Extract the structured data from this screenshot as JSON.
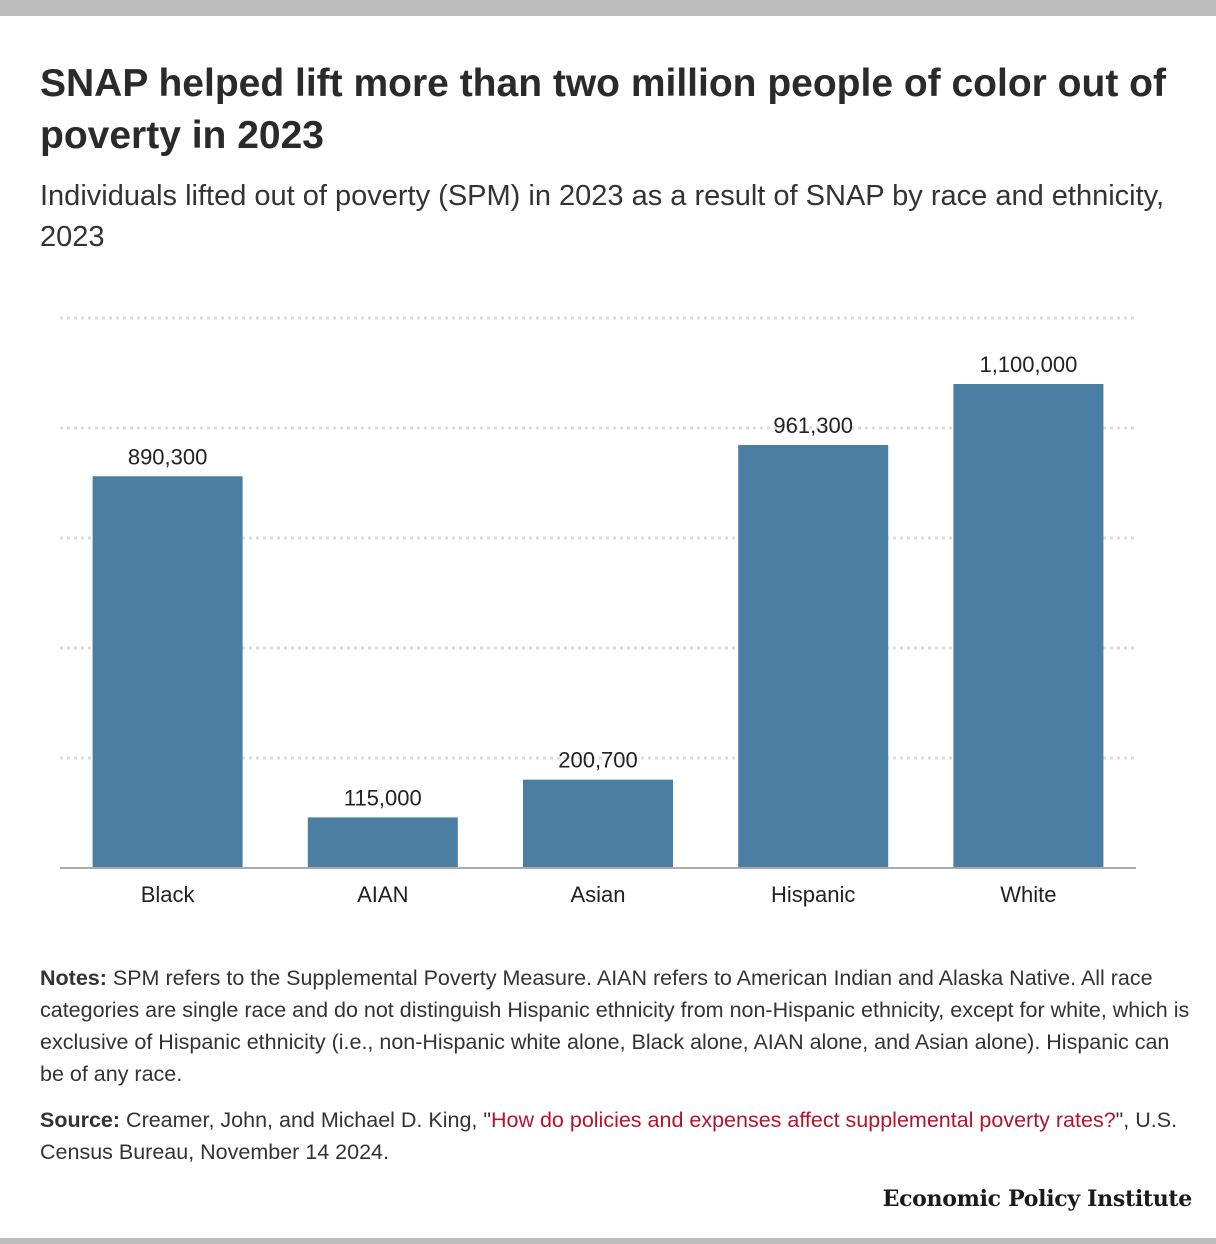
{
  "title": "SNAP helped lift more than two million people of color out of poverty in 2023",
  "subtitle": "Individuals lifted out of poverty (SPM) in 2023 as a result of SNAP by race and ethnicity, 2023",
  "chart_data": {
    "type": "bar",
    "categories": [
      "Black",
      "AIAN",
      "Asian",
      "Hispanic",
      "White"
    ],
    "values": [
      890300,
      115000,
      200700,
      961300,
      1100000
    ],
    "value_labels": [
      "890,300",
      "115,000",
      "200,700",
      "961,300",
      "1,100,000"
    ],
    "title": "",
    "xlabel": "",
    "ylabel": "",
    "ylim": [
      0,
      1250000
    ],
    "grid": true,
    "bar_color": "#4a7fa3"
  },
  "notes": {
    "label": "Notes:",
    "text": " SPM refers to the Supplemental Poverty Measure. AIAN refers to American Indian and Alaska Native. All race categories are single race and do not distinguish Hispanic ethnicity from non-Hispanic ethnicity, except for white, which is exclusive of Hispanic ethnicity (i.e., non-Hispanic white alone, Black alone, AIAN alone, and Asian alone). Hispanic can be of any race."
  },
  "source": {
    "label": "Source:",
    "text_before": " Creamer, John, and Michael D. King, \"",
    "link_text": "How do policies and expenses affect supplemental poverty rates?",
    "text_after": "\", U.S. Census Bureau, November 14 2024."
  },
  "brand": "Economic Policy Institute"
}
